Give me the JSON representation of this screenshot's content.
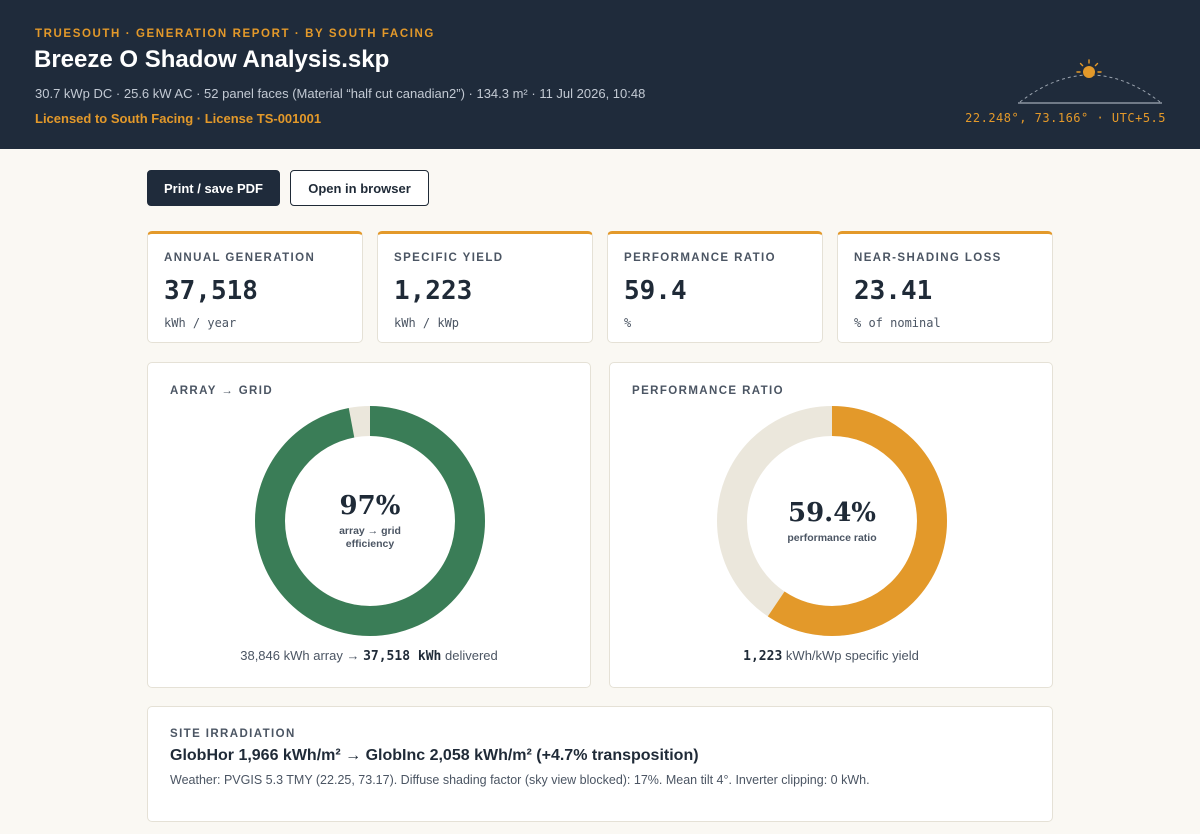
{
  "header": {
    "eyebrow": "TRUESOUTH · GENERATION REPORT · BY SOUTH FACING",
    "title": "Breeze O Shadow Analysis.skp",
    "meta": "30.7 kWp DC · 25.6 kW AC · 52 panel faces (Material “half cut canadian2”) · 134.3 m² · 11 Jul 2026, 10:48",
    "license": "Licensed to South Facing · License TS-001001",
    "coords": "22.248°, 73.166° · UTC+5.5",
    "sun_icon": "sun-arc-icon"
  },
  "actions": {
    "print_label": "Print / save PDF",
    "open_label": "Open in browser"
  },
  "kpis": [
    {
      "label": "ANNUAL GENERATION",
      "value": "37,518",
      "unit": "kWh / year"
    },
    {
      "label": "SPECIFIC YIELD",
      "value": "1,223",
      "unit": "kWh / kWp"
    },
    {
      "label": "PERFORMANCE RATIO",
      "value": "59.4",
      "unit": "%"
    },
    {
      "label": "NEAR-SHADING LOSS",
      "value": "23.41",
      "unit": "% of nominal"
    }
  ],
  "array_grid": {
    "label": "ARRAY → GRID",
    "percent": 97,
    "value_text": "97%",
    "sub": "array → grid efficiency",
    "foot_array": "38,846 kWh array →",
    "foot_delivered": "37,518 kWh",
    "foot_suffix": "delivered",
    "color": "#3a7d57",
    "track_color": "#ebe7dc"
  },
  "performance": {
    "label": "PERFORMANCE RATIO",
    "percent": 59.4,
    "value_text": "59.4%",
    "sub": "performance ratio",
    "foot_value": "1,223",
    "foot_suffix": "kWh/kWp specific yield",
    "color": "#e3992a",
    "track_color": "#ebe7dc"
  },
  "site": {
    "label": "SITE IRRADIATION",
    "headline": "GlobHor 1,966 kWh/m² → GlobInc 2,058 kWh/m² (+4.7% transposition)",
    "detail": "Weather: PVGIS 5.3 TMY (22.25, 73.17). Diffuse shading factor (sky view blocked): 17%. Mean tilt 4°. Inverter clipping: 0 kWh."
  },
  "colors": {
    "accent": "#e3992a",
    "header_bg": "#1f2b3b",
    "green": "#3a7d57"
  }
}
